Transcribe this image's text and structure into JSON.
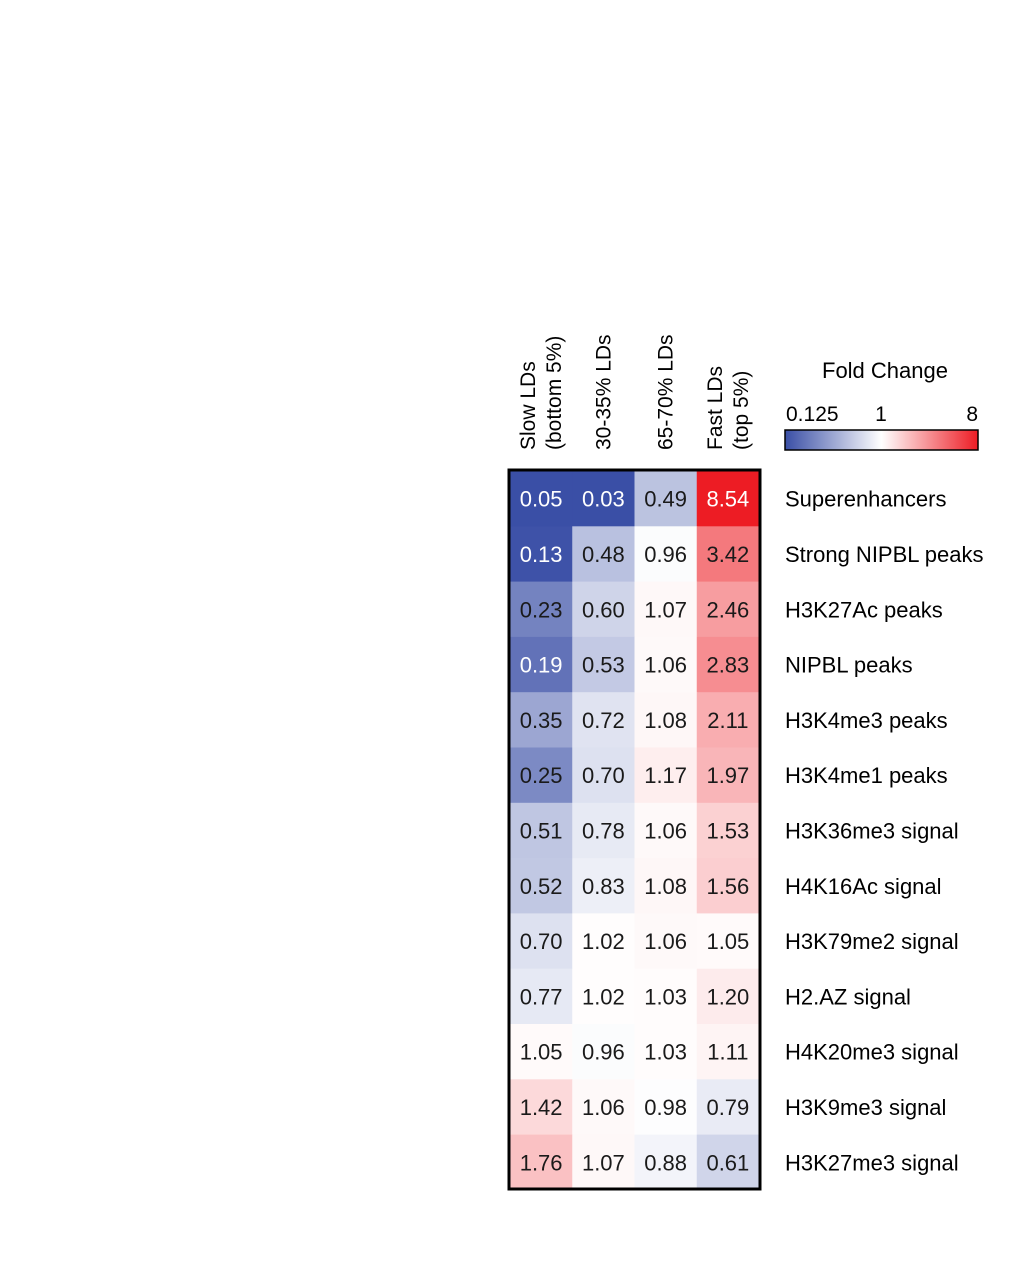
{
  "chart_data": {
    "type": "heatmap",
    "columns": [
      "Slow LDs\n(bottom 5%)",
      "30-35% LDs",
      "65-70% LDs",
      "Fast LDs\n(top 5%)"
    ],
    "rows": [
      "Superenhancers",
      "Strong NIPBL peaks",
      "H3K27Ac peaks",
      "NIPBL peaks",
      "H3K4me3 peaks",
      "H3K4me1 peaks",
      "H3K36me3 signal",
      "H4K16Ac signal",
      "H3K79me2 signal",
      "H2.AZ signal",
      "H4K20me3 signal",
      "H3K9me3 signal",
      "H3K27me3 signal"
    ],
    "values": [
      [
        0.05,
        0.03,
        0.49,
        8.54
      ],
      [
        0.13,
        0.48,
        0.96,
        3.42
      ],
      [
        0.23,
        0.6,
        1.07,
        2.46
      ],
      [
        0.19,
        0.53,
        1.06,
        2.83
      ],
      [
        0.35,
        0.72,
        1.08,
        2.11
      ],
      [
        0.25,
        0.7,
        1.17,
        1.97
      ],
      [
        0.51,
        0.78,
        1.06,
        1.53
      ],
      [
        0.52,
        0.83,
        1.08,
        1.56
      ],
      [
        0.7,
        1.02,
        1.06,
        1.05
      ],
      [
        0.77,
        1.02,
        1.03,
        1.2
      ],
      [
        1.05,
        0.96,
        1.03,
        1.11
      ],
      [
        1.42,
        1.06,
        0.98,
        0.79
      ],
      [
        1.76,
        1.07,
        0.88,
        0.61
      ]
    ],
    "colorbar": {
      "title": "Fold Change",
      "scale": "log2",
      "min_label": "0.125",
      "mid_label": "1",
      "max_label": "8",
      "min": 0.125,
      "mid": 1,
      "max": 8,
      "low_color": "#3a4fa6",
      "mid_color": "#ffffff",
      "high_color": "#ed1c24"
    }
  }
}
